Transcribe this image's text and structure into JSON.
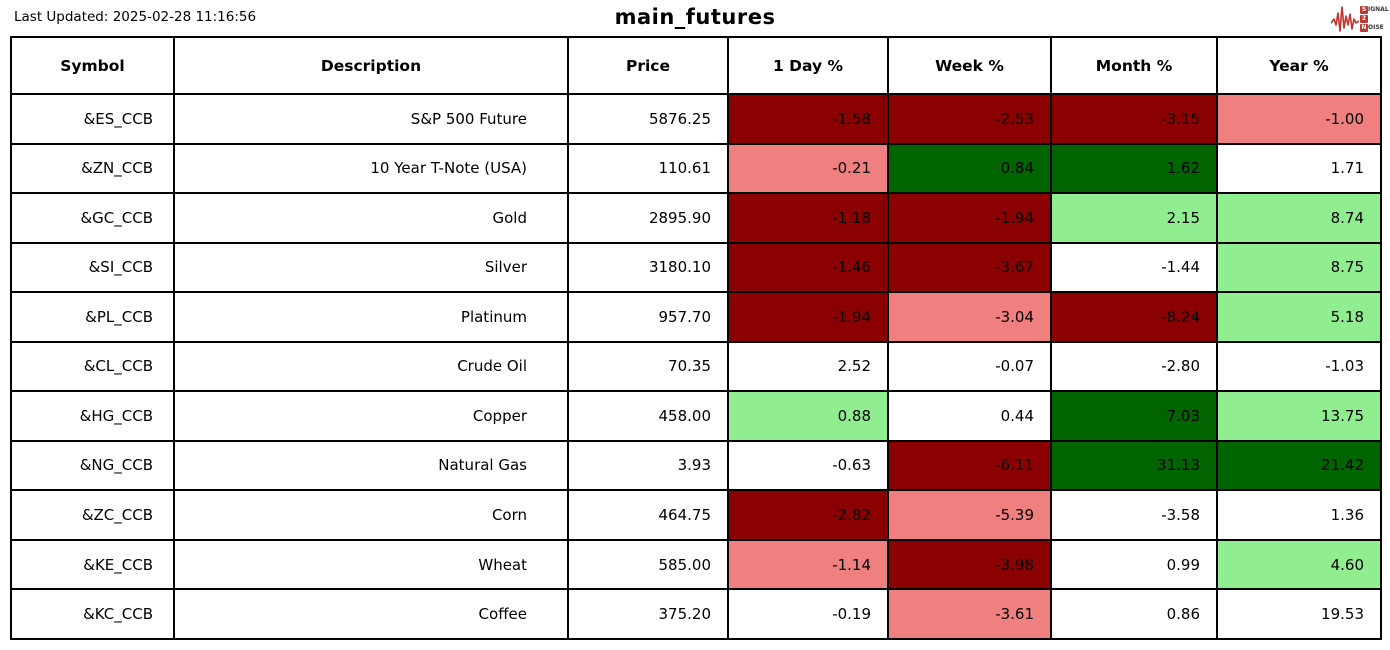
{
  "header": {
    "last_updated": "Last Updated: 2025-02-28 11:16:56",
    "title": "main_futures",
    "logo": {
      "line1_badge": "S",
      "line1_rest": "IGNAL",
      "line2_badge": "2",
      "line2_rest": "",
      "line3_badge": "N",
      "line3_rest": "OISE",
      "accent_color": "#c0372f"
    }
  },
  "colors": {
    "strong_down": "#8B0000",
    "down": "#F08080",
    "flat": "#FFFFFF",
    "up": "#90EE90",
    "strong_up": "#006400"
  },
  "chart_data": {
    "type": "table",
    "title": "main_futures",
    "columns": [
      "Symbol",
      "Description",
      "Price",
      "1 Day %",
      "Week %",
      "Month %",
      "Year %"
    ],
    "rows": [
      {
        "symbol": "&ES_CCB",
        "description": "S&P 500 Future",
        "price": "5876.25",
        "changes": [
          {
            "value": "-1.58",
            "tone": "strong_down"
          },
          {
            "value": "-2.53",
            "tone": "strong_down"
          },
          {
            "value": "-3.15",
            "tone": "strong_down"
          },
          {
            "value": "-1.00",
            "tone": "down"
          }
        ]
      },
      {
        "symbol": "&ZN_CCB",
        "description": "10 Year T-Note (USA)",
        "price": "110.61",
        "changes": [
          {
            "value": "-0.21",
            "tone": "down"
          },
          {
            "value": "0.84",
            "tone": "strong_up"
          },
          {
            "value": "1.62",
            "tone": "strong_up"
          },
          {
            "value": "1.71",
            "tone": "flat"
          }
        ]
      },
      {
        "symbol": "&GC_CCB",
        "description": "Gold",
        "price": "2895.90",
        "changes": [
          {
            "value": "-1.18",
            "tone": "strong_down"
          },
          {
            "value": "-1.94",
            "tone": "strong_down"
          },
          {
            "value": "2.15",
            "tone": "up"
          },
          {
            "value": "8.74",
            "tone": "up"
          }
        ]
      },
      {
        "symbol": "&SI_CCB",
        "description": "Silver",
        "price": "3180.10",
        "changes": [
          {
            "value": "-1.46",
            "tone": "strong_down"
          },
          {
            "value": "-3.67",
            "tone": "strong_down"
          },
          {
            "value": "-1.44",
            "tone": "flat"
          },
          {
            "value": "8.75",
            "tone": "up"
          }
        ]
      },
      {
        "symbol": "&PL_CCB",
        "description": "Platinum",
        "price": "957.70",
        "changes": [
          {
            "value": "-1.94",
            "tone": "strong_down"
          },
          {
            "value": "-3.04",
            "tone": "down"
          },
          {
            "value": "-8.24",
            "tone": "strong_down"
          },
          {
            "value": "5.18",
            "tone": "up"
          }
        ]
      },
      {
        "symbol": "&CL_CCB",
        "description": "Crude Oil",
        "price": "70.35",
        "changes": [
          {
            "value": "2.52",
            "tone": "flat"
          },
          {
            "value": "-0.07",
            "tone": "flat"
          },
          {
            "value": "-2.80",
            "tone": "flat"
          },
          {
            "value": "-1.03",
            "tone": "flat"
          }
        ]
      },
      {
        "symbol": "&HG_CCB",
        "description": "Copper",
        "price": "458.00",
        "changes": [
          {
            "value": "0.88",
            "tone": "up"
          },
          {
            "value": "0.44",
            "tone": "flat"
          },
          {
            "value": "7.03",
            "tone": "strong_up"
          },
          {
            "value": "13.75",
            "tone": "up"
          }
        ]
      },
      {
        "symbol": "&NG_CCB",
        "description": "Natural Gas",
        "price": "3.93",
        "changes": [
          {
            "value": "-0.63",
            "tone": "flat"
          },
          {
            "value": "-6.11",
            "tone": "strong_down"
          },
          {
            "value": "31.13",
            "tone": "strong_up"
          },
          {
            "value": "21.42",
            "tone": "strong_up"
          }
        ]
      },
      {
        "symbol": "&ZC_CCB",
        "description": "Corn",
        "price": "464.75",
        "changes": [
          {
            "value": "-2.82",
            "tone": "strong_down"
          },
          {
            "value": "-5.39",
            "tone": "down"
          },
          {
            "value": "-3.58",
            "tone": "flat"
          },
          {
            "value": "1.36",
            "tone": "flat"
          }
        ]
      },
      {
        "symbol": "&KE_CCB",
        "description": "Wheat",
        "price": "585.00",
        "changes": [
          {
            "value": "-1.14",
            "tone": "down"
          },
          {
            "value": "-3.98",
            "tone": "strong_down"
          },
          {
            "value": "0.99",
            "tone": "flat"
          },
          {
            "value": "4.60",
            "tone": "up"
          }
        ]
      },
      {
        "symbol": "&KC_CCB",
        "description": "Coffee",
        "price": "375.20",
        "changes": [
          {
            "value": "-0.19",
            "tone": "flat"
          },
          {
            "value": "-3.61",
            "tone": "down"
          },
          {
            "value": "0.86",
            "tone": "flat"
          },
          {
            "value": "19.53",
            "tone": "flat"
          }
        ]
      }
    ]
  }
}
